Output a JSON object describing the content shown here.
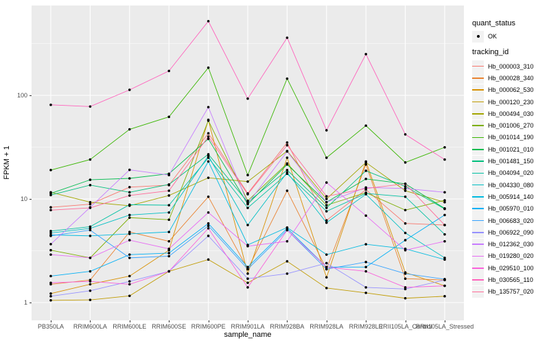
{
  "chart_data": {
    "type": "line",
    "title": "",
    "xlabel": "sample_name",
    "ylabel": "FPKM + 1",
    "y_scale": "log10",
    "y_ticks": [
      1,
      10,
      100
    ],
    "y_minor_ticks": [
      3.162,
      31.62,
      316.2
    ],
    "ylim": [
      1,
      600
    ],
    "grid": true,
    "legend": {
      "position": "right",
      "quant_status_title": "quant_status",
      "ok_label": "OK",
      "tracking_title": "tracking_id"
    },
    "panel_bg": "#EBEBEB",
    "grid_color": "#FFFFFF",
    "axis_text_color": "#4D4D4D",
    "point_color": "#000000",
    "legend_key_bg": "#F2F2F2",
    "x_categories": [
      "PB350LA",
      "RRIM600LA",
      "RRIM600LE",
      "RRIM600SE",
      "RRIM600PE",
      "RRIM901LA",
      "RRIM928BA",
      "RRIM928LA",
      "RRIM928LE",
      "RRII105LA_Control",
      "RRII105LA_Stressed"
    ],
    "series": [
      {
        "name": "Hb_000003_310",
        "color": "#F8766D",
        "values": [
          8.3,
          8.9,
          13,
          13.6,
          43,
          11.3,
          35,
          6.2,
          12.3,
          5.8,
          5.6
        ]
      },
      {
        "name": "Hb_000028_340",
        "color": "#EA8331",
        "values": [
          1.5,
          1.65,
          4.8,
          3.9,
          10.5,
          2.1,
          12,
          2.1,
          21.5,
          1.7,
          1.65
        ]
      },
      {
        "name": "Hb_000062_530",
        "color": "#D89000",
        "values": [
          1.22,
          1.5,
          1.8,
          3.2,
          58,
          1.9,
          25,
          1.75,
          23,
          1.95,
          1.45
        ]
      },
      {
        "name": "Hb_000120_230",
        "color": "#C09B00",
        "values": [
          1.05,
          1.06,
          1.16,
          2.0,
          2.6,
          1.55,
          2.5,
          1.38,
          1.24,
          1.1,
          1.15
        ]
      },
      {
        "name": "Hb_000494_030",
        "color": "#A3A500",
        "values": [
          11.6,
          9.3,
          8.6,
          10.8,
          16,
          14.7,
          29,
          10,
          22.5,
          12,
          9.3
        ]
      },
      {
        "name": "Hb_001006_270",
        "color": "#7CAE00",
        "values": [
          3.2,
          2.7,
          6.6,
          6.3,
          57,
          9.6,
          22,
          8.7,
          11.5,
          7.8,
          9.7
        ]
      },
      {
        "name": "Hb_001014_190",
        "color": "#39B600",
        "values": [
          19,
          24,
          47,
          62,
          185,
          17,
          145,
          25,
          51,
          22.5,
          31.5
        ]
      },
      {
        "name": "Hb_001021_010",
        "color": "#00BB4E",
        "values": [
          11.3,
          15.3,
          15.8,
          17.5,
          38,
          8.9,
          21.5,
          9.3,
          15.6,
          14,
          8.1
        ]
      },
      {
        "name": "Hb_001481_150",
        "color": "#00BF7D",
        "values": [
          10.9,
          13.6,
          11.6,
          13.8,
          27,
          9.3,
          19,
          8.2,
          18.7,
          13.2,
          8.0
        ]
      },
      {
        "name": "Hb_004094_020",
        "color": "#00C1A3",
        "values": [
          4.9,
          5.4,
          8.8,
          8.7,
          25,
          8.2,
          17.5,
          7.6,
          11.3,
          10.5,
          4.55
        ]
      },
      {
        "name": "Hb_004330_080",
        "color": "#00BFC4",
        "values": [
          4.7,
          5.2,
          7.0,
          7.4,
          26,
          5.6,
          18,
          5.9,
          11.1,
          4.7,
          2.7
        ]
      },
      {
        "name": "Hb_005914_140",
        "color": "#00BAE0",
        "values": [
          4.5,
          4.4,
          4.6,
          4.8,
          23,
          3.6,
          5.3,
          2.9,
          3.65,
          3.3,
          2.6
        ]
      },
      {
        "name": "Hb_005970_010",
        "color": "#00B0F6",
        "values": [
          1.8,
          2.0,
          2.9,
          3.0,
          5.8,
          2.2,
          5.2,
          2.2,
          2.2,
          4.0,
          7.0
        ]
      },
      {
        "name": "Hb_006683_020",
        "color": "#35A2FF",
        "values": [
          4.4,
          5.0,
          2.7,
          2.8,
          5.5,
          2.1,
          5.0,
          2.1,
          2.46,
          1.9,
          1.68
        ]
      },
      {
        "name": "Hb_006922_090",
        "color": "#9590FF",
        "values": [
          1.15,
          1.3,
          1.6,
          2.0,
          4.4,
          1.7,
          1.9,
          2.4,
          1.4,
          1.35,
          1.65
        ]
      },
      {
        "name": "Hb_012362_030",
        "color": "#C77CFF",
        "values": [
          3.66,
          8.3,
          19.1,
          17,
          77,
          9.0,
          28.7,
          9.3,
          12.9,
          12.6,
          11.6
        ]
      },
      {
        "name": "Hb_019280_020",
        "color": "#E76BF3",
        "values": [
          2.9,
          2.7,
          4.0,
          3.3,
          7.4,
          3.5,
          3.9,
          14.4,
          6.9,
          3.2,
          3.9
        ]
      },
      {
        "name": "Hb_029510_100",
        "color": "#FA62DB",
        "values": [
          1.55,
          1.6,
          1.5,
          2.0,
          5.2,
          1.4,
          5.0,
          2.2,
          2.0,
          1.4,
          1.45
        ]
      },
      {
        "name": "Hb_030565_110",
        "color": "#FF62BC",
        "values": [
          81,
          78,
          113,
          172,
          520,
          93,
          360,
          46,
          250,
          42,
          24
        ]
      },
      {
        "name": "Hb_135757_020",
        "color": "#FF6A98",
        "values": [
          7.8,
          8.2,
          10.8,
          12,
          40,
          11.1,
          33,
          10.6,
          12.6,
          14,
          5.6
        ]
      }
    ]
  }
}
